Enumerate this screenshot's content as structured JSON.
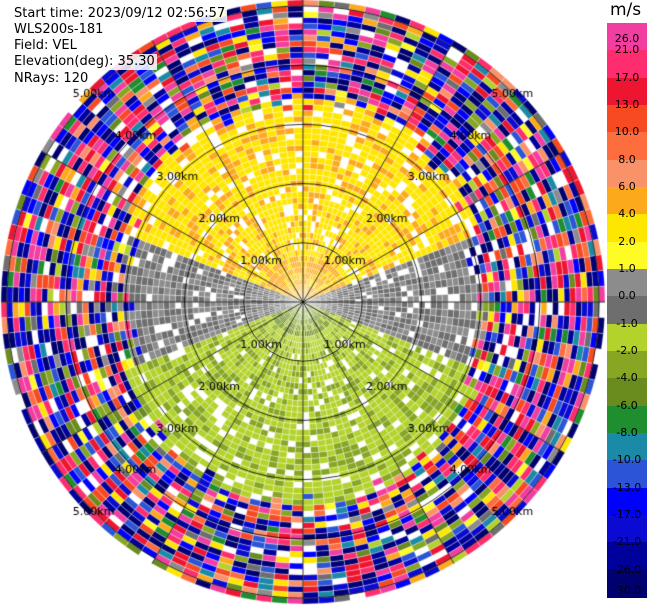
{
  "info": {
    "start_time": "Start time: 2023/09/12 02:56:57",
    "instrument": "WLS200s-181",
    "field": "Field: VEL",
    "elevation": "Elevation(deg): 35.30",
    "nrays": "NRays: 120"
  },
  "colorbar": {
    "title": "m/s",
    "ticks": [
      "26.0",
      "21.0",
      "17.0",
      "13.0",
      "10.0",
      "8.0",
      "6.0",
      "4.0",
      "2.0",
      "1.0",
      "0.0",
      "-1.0",
      "-2.0",
      "-4.0",
      "-6.0",
      "-8.0",
      "-10.0",
      "-13.0",
      "-17.0",
      "-21.0",
      "-26.0",
      "-30.0"
    ],
    "colors": [
      "#f23ea0",
      "#ff2d6e",
      "#ee1530",
      "#f74a22",
      "#fd6d3e",
      "#fa9269",
      "#fda91c",
      "#ffe600",
      "#fffb24",
      "#8c8c8c",
      "#6e6e6e",
      "#b3d22c",
      "#86a624",
      "#6a8b1e",
      "#1f8e2e",
      "#1b8aa6",
      "#2b55d6",
      "#0000ff",
      "#0a0ad2",
      "#00009a",
      "#000070"
    ]
  },
  "chart_data": {
    "type": "heatmap",
    "projection": "polar PPI",
    "field": "VEL",
    "units": "m/s",
    "nrays": 120,
    "elevation_deg": 35.3,
    "range_rings_km": [
      1.0,
      2.0,
      3.0,
      4.0,
      5.0
    ],
    "ring_labels": [
      "1.00km",
      "2.00km",
      "3.00km",
      "4.00km",
      "5.00km"
    ],
    "spokes_deg": [
      0,
      30,
      60,
      90,
      120,
      150,
      180,
      210,
      240,
      270,
      300,
      330
    ],
    "max_range_km": 5.1,
    "clean_region_km": 3.0,
    "north_sector": {
      "azimuth_deg": [
        -70,
        70
      ],
      "velocity_ms": 2.0
    },
    "south_sector": {
      "azimuth_deg": [
        110,
        250
      ],
      "velocity_ms": -2.0
    },
    "near_north_core": {
      "range_km": 0.8,
      "velocity_ms": 6.0
    },
    "near_south_core": {
      "range_km": 0.6,
      "velocity_ms": -6.0
    },
    "east_west_band_ms": 0.0,
    "outer_noise": "random velocities, full color range"
  }
}
